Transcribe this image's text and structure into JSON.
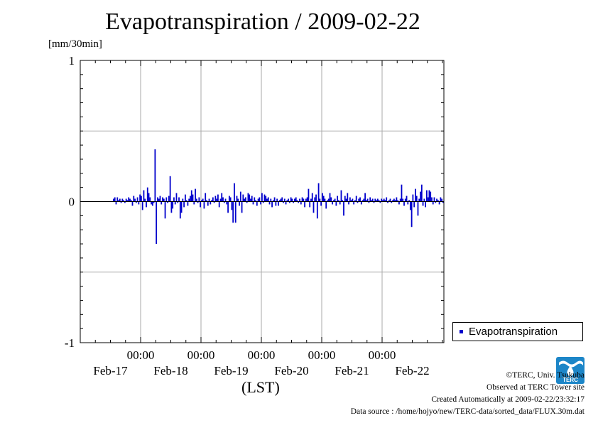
{
  "header": {
    "title": "Evapotranspiration / 2009-02-22",
    "unit": "[mm/30min]"
  },
  "chart_data": {
    "type": "bar",
    "ylim": [
      -1,
      1
    ],
    "yticks": [
      1,
      0,
      -1
    ],
    "grid": true,
    "xaxis": {
      "title": "(LST)",
      "time_ticks": [
        "00:00",
        "00:00",
        "00:00",
        "00:00",
        "00:00"
      ],
      "date_labels": [
        "Feb-17",
        "Feb-18",
        "Feb-19",
        "Feb-20",
        "Feb-21",
        "Feb-22"
      ]
    },
    "legend": {
      "position": "right",
      "entries": [
        "Evapotranspiration"
      ]
    },
    "series": [
      {
        "name": "Evapotranspiration",
        "color": "#0000cc",
        "x_start": "2009-02-16 13:00",
        "interval_minutes": 30,
        "values": [
          0.02,
          0.03,
          -0.02,
          0.03,
          0.01,
          0.02,
          -0.01,
          0.02,
          0.01,
          -0.01,
          0.02,
          0.01,
          0.03,
          0.02,
          0.01,
          -0.03,
          0.04,
          0.02,
          -0.01,
          0.03,
          -0.02,
          0.05,
          0.04,
          -0.06,
          0.08,
          0.02,
          -0.04,
          0.1,
          0.06,
          0.03,
          -0.02,
          -0.03,
          -0.01,
          0.37,
          -0.3,
          0.03,
          0.02,
          0.04,
          -0.02,
          0.03,
          0.02,
          -0.12,
          0.03,
          -0.01,
          0.04,
          0.18,
          -0.08,
          -0.05,
          0.03,
          -0.02,
          0.06,
          -0.01,
          0.03,
          -0.12,
          -0.08,
          0.02,
          -0.04,
          0.05,
          0.01,
          -0.03,
          0.02,
          0.04,
          0.08,
          0.05,
          -0.02,
          0.09,
          0.02,
          -0.01,
          0.03,
          -0.04,
          0.01,
          0.02,
          -0.05,
          0.06,
          0.01,
          -0.03,
          0.02,
          -0.02,
          0.01,
          0.03,
          -0.01,
          0.04,
          0.02,
          0.05,
          -0.04,
          0.02,
          0.06,
          0.03,
          -0.01,
          0.02,
          -0.02,
          -0.08,
          0.04,
          0.03,
          -0.06,
          -0.15,
          0.13,
          -0.15,
          0.04,
          0.02,
          -0.03,
          0.07,
          -0.08,
          0.05,
          0.02,
          0.03,
          -0.01,
          0.06,
          0.05,
          0.02,
          0.04,
          -0.02,
          0.03,
          0.01,
          -0.03,
          0.02,
          0.03,
          -0.02,
          0.06,
          -0.01,
          0.05,
          0.04,
          0.02,
          0.03,
          -0.02,
          0.02,
          -0.04,
          0.01,
          0.03,
          -0.03,
          0.02,
          -0.03,
          0.01,
          0.02,
          0.03,
          -0.01,
          0.02,
          -0.02,
          0.01,
          0.02,
          -0.01,
          0.03,
          0.02,
          -0.01,
          0.02,
          0.03,
          0.01,
          -0.01,
          0.02,
          -0.02,
          0.03,
          0.02,
          -0.04,
          0.02,
          0.03,
          0.09,
          -0.04,
          0.02,
          0.06,
          -0.08,
          0.03,
          0.05,
          -0.12,
          0.13,
          0.02,
          -0.03,
          0.06,
          0.04,
          0.02,
          -0.05,
          0.01,
          0.02,
          0.06,
          0.03,
          -0.02,
          0.01,
          0.02,
          -0.03,
          0.04,
          0.01,
          -0.02,
          0.08,
          0.01,
          -0.1,
          0.04,
          0.02,
          0.06,
          -0.02,
          0.03,
          0.01,
          0.02,
          -0.02,
          0.01,
          0.04,
          -0.01,
          0.02,
          0.03,
          -0.02,
          0.01,
          0.02,
          0.06,
          0.01,
          0.02,
          -0.01,
          0.03,
          0.01,
          0.02,
          -0.01,
          0.02,
          0.01,
          0.02,
          0.01,
          -0.01,
          0.02,
          0.01,
          0.02,
          0.01,
          0.03,
          -0.01,
          0.01,
          0.02,
          -0.01,
          0.01,
          0.02,
          0.01,
          0.03,
          0.01,
          -0.02,
          0.02,
          0.12,
          0.02,
          -0.03,
          0.02,
          0.04,
          -0.02,
          0.01,
          -0.06,
          -0.18,
          0.05,
          -0.04,
          0.09,
          0.04,
          -0.1,
          0.02,
          0.07,
          0.12,
          -0.03,
          0.02,
          -0.04,
          0.08,
          0.03,
          0.08,
          0.07,
          0.03,
          -0.02,
          0.03,
          -0.01,
          0.02,
          0.01,
          -0.02,
          0.03,
          0.02,
          -0.01,
          -0.02,
          0.02,
          0.01,
          -0.03,
          0.13,
          0.02,
          0.01,
          0.02,
          -0.01,
          0.02,
          0.01,
          -0.02,
          0.03,
          0.02,
          0.01
        ]
      }
    ]
  },
  "legend": {
    "label": "Evapotranspiration",
    "swatch_color": "#0000cc"
  },
  "credits": {
    "copyright": "©TERC, Univ. Tsukuba",
    "observed": "Observed at TERC Tower site",
    "created": "Created Automatically at 2009-02-22/23:32:17",
    "source": "Data source : /home/hojyo/new/TERC-data/sorted_data/FLUX.30m.dat"
  },
  "logo": {
    "name": "terc-logo",
    "text": "TERC",
    "color": "#1d86c8"
  }
}
